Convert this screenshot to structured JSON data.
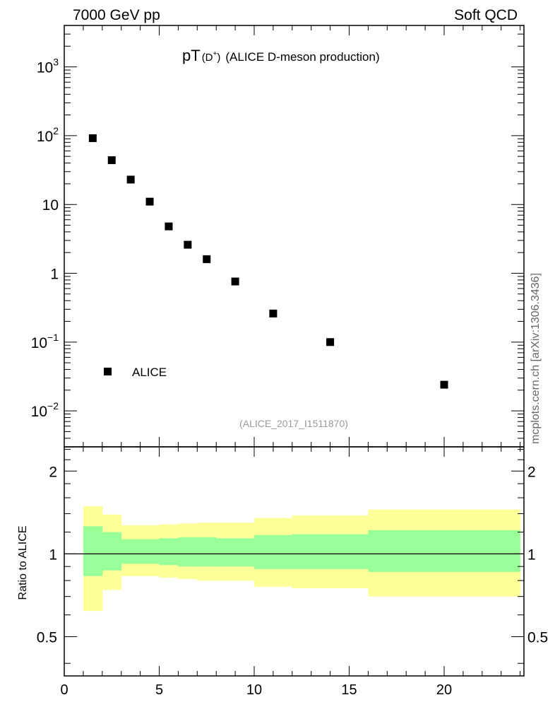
{
  "header": {
    "energy_label": "7000 GeV pp",
    "category_label": "Soft QCD",
    "side_label": "mcplots.cern.ch [arXiv:1306.3436]"
  },
  "chart_data": [
    {
      "type": "scatter",
      "title_main": "pT",
      "title_sub": "(D",
      "title_sup": "+",
      "title_sub_end": ")",
      "title_rest": "(ALICE D-meson production)",
      "analysis_id": "(ALICE_2017_I1511870)",
      "xlabel": "",
      "ylabel": "",
      "yscale": "log",
      "xlim": [
        0,
        24.2
      ],
      "ylim": [
        0.003,
        4000
      ],
      "ytick_labels": [
        {
          "value": 0.01,
          "base": "10",
          "exp": "−2"
        },
        {
          "value": 0.1,
          "base": "10",
          "exp": "−1"
        },
        {
          "value": 1,
          "base": "1",
          "exp": ""
        },
        {
          "value": 10,
          "base": "10",
          "exp": ""
        },
        {
          "value": 100,
          "base": "10",
          "exp": "2"
        },
        {
          "value": 1000,
          "base": "10",
          "exp": "3"
        }
      ],
      "legend": {
        "location": "lower-left",
        "entries": [
          "ALICE"
        ]
      },
      "series": [
        {
          "name": "ALICE",
          "color": "#000000",
          "marker": "square",
          "x": [
            1.5,
            2.5,
            3.5,
            4.5,
            5.5,
            6.5,
            7.5,
            9,
            11,
            14,
            20
          ],
          "y": [
            92,
            44,
            23,
            11,
            4.8,
            2.6,
            1.6,
            0.76,
            0.26,
            0.1,
            0.024
          ]
        }
      ]
    },
    {
      "type": "area",
      "ylabel": "Ratio to ALICE",
      "xlim": [
        0,
        24.2
      ],
      "ylim": [
        0.36,
        2.45
      ],
      "xtick_labels": [
        "0",
        "5",
        "10",
        "15",
        "20"
      ],
      "xticks": [
        0,
        5,
        10,
        15,
        20
      ],
      "ytick_labels": [
        "0.5",
        "1",
        "2"
      ],
      "yticks": [
        0.5,
        1,
        2
      ],
      "reference_line": 1,
      "bands": [
        {
          "name": "stat",
          "color": "#99ff99",
          "bins": [
            {
              "x0": 1,
              "x1": 2,
              "lo": 0.83,
              "hi": 1.26
            },
            {
              "x0": 2,
              "x1": 3,
              "lo": 0.87,
              "hi": 1.2
            },
            {
              "x0": 3,
              "x1": 4,
              "lo": 0.92,
              "hi": 1.13
            },
            {
              "x0": 4,
              "x1": 5,
              "lo": 0.92,
              "hi": 1.13
            },
            {
              "x0": 5,
              "x1": 6,
              "lo": 0.91,
              "hi": 1.14
            },
            {
              "x0": 6,
              "x1": 7,
              "lo": 0.9,
              "hi": 1.15
            },
            {
              "x0": 7,
              "x1": 8,
              "lo": 0.9,
              "hi": 1.15
            },
            {
              "x0": 8,
              "x1": 10,
              "lo": 0.9,
              "hi": 1.14
            },
            {
              "x0": 10,
              "x1": 12,
              "lo": 0.88,
              "hi": 1.17
            },
            {
              "x0": 12,
              "x1": 16,
              "lo": 0.88,
              "hi": 1.18
            },
            {
              "x0": 16,
              "x1": 24,
              "lo": 0.86,
              "hi": 1.22
            }
          ]
        },
        {
          "name": "total",
          "color": "#ffff99",
          "bins": [
            {
              "x0": 1,
              "x1": 2,
              "lo": 0.62,
              "hi": 1.49
            },
            {
              "x0": 2,
              "x1": 3,
              "lo": 0.74,
              "hi": 1.39
            },
            {
              "x0": 3,
              "x1": 4,
              "lo": 0.83,
              "hi": 1.27
            },
            {
              "x0": 4,
              "x1": 5,
              "lo": 0.83,
              "hi": 1.27
            },
            {
              "x0": 5,
              "x1": 6,
              "lo": 0.82,
              "hi": 1.28
            },
            {
              "x0": 6,
              "x1": 7,
              "lo": 0.81,
              "hi": 1.29
            },
            {
              "x0": 7,
              "x1": 8,
              "lo": 0.8,
              "hi": 1.3
            },
            {
              "x0": 8,
              "x1": 10,
              "lo": 0.8,
              "hi": 1.3
            },
            {
              "x0": 10,
              "x1": 12,
              "lo": 0.76,
              "hi": 1.35
            },
            {
              "x0": 12,
              "x1": 16,
              "lo": 0.75,
              "hi": 1.38
            },
            {
              "x0": 16,
              "x1": 24,
              "lo": 0.7,
              "hi": 1.45
            }
          ]
        }
      ]
    }
  ]
}
